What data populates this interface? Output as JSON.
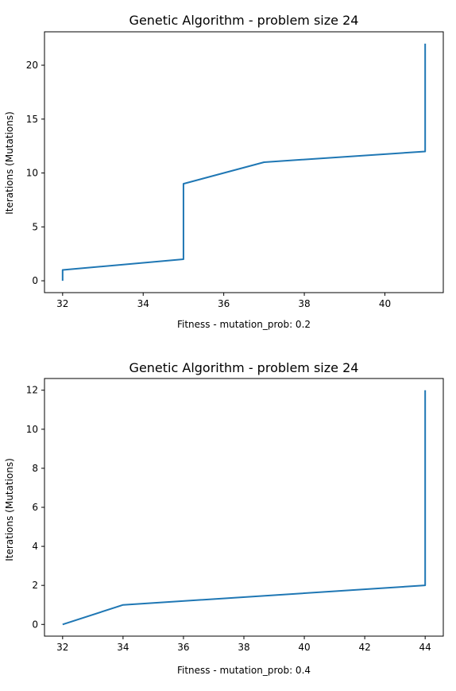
{
  "chart_data": [
    {
      "type": "line",
      "title": "Genetic Algorithm - problem size 24",
      "xlabel": "Fitness - mutation_prob: 0.2",
      "ylabel": "Iterations (Mutations)",
      "xlim": [
        31.55,
        41.45
      ],
      "ylim": [
        -1.1,
        23.1
      ],
      "xticks": [
        32,
        34,
        36,
        38,
        40
      ],
      "yticks": [
        0,
        5,
        10,
        15,
        20
      ],
      "series": [
        {
          "color": "#1f77b4",
          "x": [
            32,
            32,
            35,
            35,
            37,
            41,
            41
          ],
          "y": [
            0,
            1,
            2,
            9,
            11,
            12,
            22
          ]
        }
      ],
      "grid": false
    },
    {
      "type": "line",
      "title": "Genetic Algorithm - problem size 24",
      "xlabel": "Fitness - mutation_prob: 0.4",
      "ylabel": "Iterations (Mutations)",
      "xlim": [
        31.4,
        44.6
      ],
      "ylim": [
        -0.6,
        12.6
      ],
      "xticks": [
        32,
        34,
        36,
        38,
        40,
        42,
        44
      ],
      "yticks": [
        0,
        2,
        4,
        6,
        8,
        10,
        12
      ],
      "series": [
        {
          "color": "#1f77b4",
          "x": [
            32,
            34,
            44,
            44
          ],
          "y": [
            0,
            1,
            2,
            12
          ]
        }
      ],
      "grid": false
    }
  ]
}
